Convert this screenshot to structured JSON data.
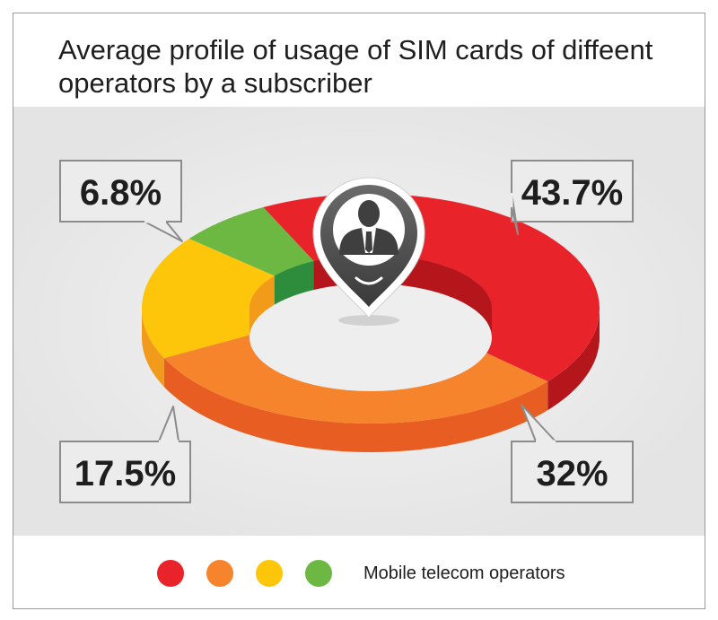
{
  "title": "Average profile of usage of SIM cards of diffeent operators by a subscriber",
  "chart_data": {
    "type": "pie",
    "style": "3d-donut",
    "categories": [
      "43.7%",
      "32%",
      "17.5%",
      "6.8%"
    ],
    "values": [
      43.7,
      32,
      17.5,
      6.8
    ],
    "unit": "%",
    "data_labels": [
      "43.7%",
      "32%",
      "17.5%",
      "6.8%"
    ],
    "colors": [
      "#e8242a",
      "#f5842c",
      "#fdc60b",
      "#6db842"
    ],
    "side_colors": [
      "#b5161c",
      "#e85d22",
      "#f29a1b",
      "#2f8d3c"
    ],
    "center_icon": "user-pin-icon",
    "legend": {
      "placement": "bottom",
      "label": "Mobile telecom operators",
      "colors": [
        "#e8242a",
        "#f5842c",
        "#fdc60b",
        "#6db842"
      ]
    }
  }
}
